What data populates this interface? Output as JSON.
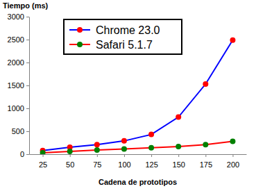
{
  "chart_data": {
    "type": "line",
    "x_label": "Cadena de prototipos",
    "y_label": "Tiempo (ms)",
    "categories": [
      "25",
      "50",
      "75",
      "100",
      "125",
      "150",
      "175",
      "200"
    ],
    "series": [
      {
        "name": "Chrome 23.0",
        "color": "#0000ff",
        "marker": "circle",
        "values": [
          80,
          150,
          210,
          290,
          430,
          810,
          1530,
          2490
        ]
      },
      {
        "name": "Safari 5.1.7",
        "color": "#ff0000",
        "marker": "circle",
        "values": [
          30,
          60,
          90,
          115,
          140,
          165,
          210,
          280
        ]
      }
    ],
    "ylim": [
      0,
      3000
    ],
    "yticks": [
      0,
      500,
      1000,
      1500,
      2000,
      2500,
      3000
    ],
    "grid": false,
    "legend": "top"
  }
}
